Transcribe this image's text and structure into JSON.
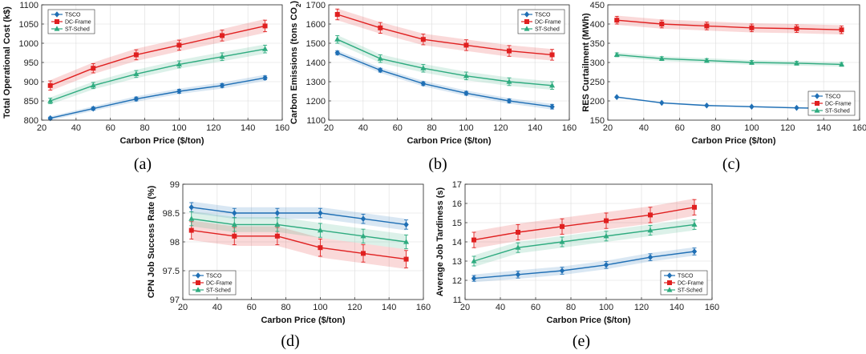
{
  "chart_data": [
    {
      "id": "a",
      "type": "line",
      "caption": "(a)",
      "xlabel": "Carbon Price ($/ton)",
      "ylabel": "Total Operational Cost (k$)",
      "xlim": [
        20,
        160
      ],
      "ylim": [
        800,
        1100
      ],
      "xticks": [
        20,
        40,
        60,
        80,
        100,
        120,
        140,
        160
      ],
      "yticks": [
        800,
        850,
        900,
        950,
        1000,
        1050,
        1100
      ],
      "grid": true,
      "legend_position": "top-left",
      "x": [
        25,
        50,
        75,
        100,
        125,
        150
      ],
      "series": [
        {
          "name": "TSCO",
          "color": "#1f6fb5",
          "marker": "diamond",
          "values": [
            805,
            830,
            855,
            875,
            890,
            910
          ],
          "err": [
            3,
            4,
            5,
            5,
            5,
            5
          ],
          "band": [
            5,
            6,
            7,
            7,
            8,
            8
          ]
        },
        {
          "name": "DC-Frame",
          "color": "#e02020",
          "marker": "square",
          "values": [
            890,
            935,
            970,
            995,
            1020,
            1045
          ],
          "err": [
            12,
            12,
            13,
            13,
            14,
            15
          ],
          "band": [
            14,
            15,
            16,
            16,
            17,
            18
          ]
        },
        {
          "name": "ST-Sched",
          "color": "#2eab7f",
          "marker": "triangle",
          "values": [
            850,
            890,
            920,
            945,
            965,
            985
          ],
          "err": [
            7,
            8,
            9,
            9,
            10,
            10
          ],
          "band": [
            9,
            10,
            11,
            11,
            12,
            12
          ]
        }
      ]
    },
    {
      "id": "b",
      "type": "line",
      "caption": "(b)",
      "xlabel": "Carbon Price ($/ton)",
      "ylabel": "Carbon Emissions (tons CO",
      "ylabel_sub": "2",
      "ylabel_end": ")",
      "xlim": [
        20,
        160
      ],
      "ylim": [
        1100,
        1700
      ],
      "xticks": [
        20,
        40,
        60,
        80,
        100,
        120,
        140,
        160
      ],
      "yticks": [
        1100,
        1200,
        1300,
        1400,
        1500,
        1600,
        1700
      ],
      "grid": true,
      "legend_position": "top-right",
      "x": [
        25,
        50,
        75,
        100,
        125,
        150
      ],
      "series": [
        {
          "name": "TSCO",
          "color": "#1f6fb5",
          "marker": "diamond",
          "values": [
            1450,
            1360,
            1290,
            1240,
            1200,
            1170
          ],
          "err": [
            10,
            10,
            10,
            10,
            10,
            12
          ],
          "band": [
            14,
            14,
            14,
            14,
            14,
            15
          ]
        },
        {
          "name": "DC-Frame",
          "color": "#e02020",
          "marker": "square",
          "values": [
            1650,
            1580,
            1520,
            1490,
            1460,
            1440
          ],
          "err": [
            28,
            28,
            28,
            28,
            28,
            28
          ],
          "band": [
            30,
            30,
            30,
            30,
            30,
            30
          ]
        },
        {
          "name": "ST-Sched",
          "color": "#2eab7f",
          "marker": "triangle",
          "values": [
            1520,
            1420,
            1370,
            1330,
            1300,
            1280
          ],
          "err": [
            20,
            20,
            20,
            20,
            20,
            20
          ],
          "band": [
            22,
            22,
            22,
            22,
            22,
            22
          ]
        }
      ]
    },
    {
      "id": "c",
      "type": "line",
      "caption": "(c)",
      "xlabel": "Carbon Price ($/ton)",
      "ylabel": "RES Curtailment (MWh)",
      "xlim": [
        20,
        160
      ],
      "ylim": [
        150,
        450
      ],
      "xticks": [
        20,
        40,
        60,
        80,
        100,
        120,
        140,
        160
      ],
      "yticks": [
        150,
        200,
        250,
        300,
        350,
        400,
        450
      ],
      "grid": true,
      "legend_position": "bottom-right",
      "x": [
        25,
        50,
        75,
        100,
        125,
        150
      ],
      "series": [
        {
          "name": "TSCO",
          "color": "#1f6fb5",
          "marker": "diamond",
          "values": [
            210,
            195,
            188,
            185,
            182,
            180
          ],
          "err": [
            0,
            0,
            0,
            0,
            0,
            0
          ],
          "band": [
            2,
            2,
            2,
            2,
            2,
            2
          ]
        },
        {
          "name": "DC-Frame",
          "color": "#e02020",
          "marker": "square",
          "values": [
            410,
            400,
            395,
            390,
            388,
            385
          ],
          "err": [
            10,
            10,
            10,
            10,
            10,
            10
          ],
          "band": [
            12,
            12,
            12,
            12,
            12,
            12
          ]
        },
        {
          "name": "ST-Sched",
          "color": "#2eab7f",
          "marker": "triangle",
          "values": [
            320,
            310,
            305,
            300,
            298,
            295
          ],
          "err": [
            5,
            5,
            5,
            5,
            5,
            5
          ],
          "band": [
            6,
            6,
            6,
            6,
            6,
            6
          ]
        }
      ]
    },
    {
      "id": "d",
      "type": "line",
      "caption": "(d)",
      "xlabel": "Carbon Price ($/ton)",
      "ylabel": "CPN Job Success Rate (%)",
      "xlim": [
        20,
        160
      ],
      "ylim": [
        97,
        99
      ],
      "xticks": [
        20,
        40,
        60,
        80,
        100,
        120,
        140,
        160
      ],
      "yticks": [
        97,
        97.5,
        98,
        98.5,
        99
      ],
      "grid": true,
      "legend_position": "bottom-left",
      "x": [
        25,
        50,
        75,
        100,
        125,
        150
      ],
      "series": [
        {
          "name": "TSCO",
          "color": "#1f6fb5",
          "marker": "diamond",
          "values": [
            98.6,
            98.5,
            98.5,
            98.5,
            98.4,
            98.3
          ],
          "err": [
            0.08,
            0.08,
            0.08,
            0.08,
            0.08,
            0.08
          ],
          "band": [
            0.1,
            0.1,
            0.1,
            0.1,
            0.1,
            0.1
          ]
        },
        {
          "name": "DC-Frame",
          "color": "#e02020",
          "marker": "square",
          "values": [
            98.2,
            98.1,
            98.1,
            97.9,
            97.8,
            97.7
          ],
          "err": [
            0.15,
            0.15,
            0.15,
            0.15,
            0.15,
            0.15
          ],
          "band": [
            0.17,
            0.17,
            0.17,
            0.17,
            0.17,
            0.17
          ]
        },
        {
          "name": "ST-Sched",
          "color": "#2eab7f",
          "marker": "triangle",
          "values": [
            98.4,
            98.3,
            98.3,
            98.2,
            98.1,
            98.0
          ],
          "err": [
            0.12,
            0.12,
            0.12,
            0.12,
            0.12,
            0.12
          ],
          "band": [
            0.13,
            0.13,
            0.13,
            0.13,
            0.13,
            0.13
          ]
        }
      ]
    },
    {
      "id": "e",
      "type": "line",
      "caption": "(e)",
      "xlabel": "Carbon Price ($/ton)",
      "ylabel": "Average Job Tardiness (s)",
      "xlim": [
        20,
        160
      ],
      "ylim": [
        11,
        17
      ],
      "xticks": [
        20,
        40,
        60,
        80,
        100,
        120,
        140,
        160
      ],
      "yticks": [
        11,
        12,
        13,
        14,
        15,
        16,
        17
      ],
      "grid": true,
      "legend_position": "bottom-right",
      "x": [
        25,
        50,
        75,
        100,
        125,
        150
      ],
      "series": [
        {
          "name": "TSCO",
          "color": "#1f6fb5",
          "marker": "diamond",
          "values": [
            12.1,
            12.3,
            12.5,
            12.8,
            13.2,
            13.5
          ],
          "err": [
            0.15,
            0.18,
            0.18,
            0.18,
            0.18,
            0.18
          ],
          "band": [
            0.2,
            0.22,
            0.22,
            0.22,
            0.22,
            0.22
          ]
        },
        {
          "name": "DC-Frame",
          "color": "#e02020",
          "marker": "square",
          "values": [
            14.1,
            14.5,
            14.8,
            15.1,
            15.4,
            15.8
          ],
          "err": [
            0.4,
            0.4,
            0.4,
            0.4,
            0.4,
            0.4
          ],
          "band": [
            0.45,
            0.45,
            0.45,
            0.45,
            0.45,
            0.45
          ]
        },
        {
          "name": "ST-Sched",
          "color": "#2eab7f",
          "marker": "triangle",
          "values": [
            13.0,
            13.7,
            14.0,
            14.3,
            14.6,
            14.9
          ],
          "err": [
            0.25,
            0.25,
            0.25,
            0.25,
            0.25,
            0.25
          ],
          "band": [
            0.3,
            0.3,
            0.3,
            0.3,
            0.3,
            0.3
          ]
        }
      ]
    }
  ]
}
